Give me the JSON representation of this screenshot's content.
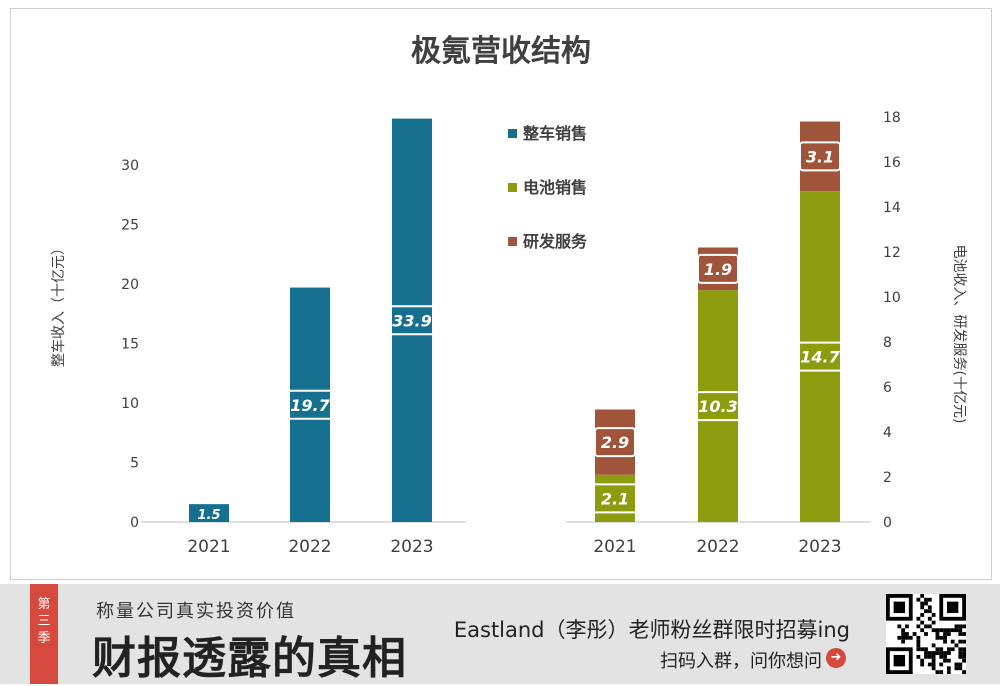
{
  "chart_data": {
    "title": "极氪营收结构",
    "left_panel": {
      "type": "bar",
      "categories": [
        "2021",
        "2022",
        "2023"
      ],
      "series": [
        {
          "name": "整车销售",
          "values": [
            1.5,
            19.7,
            33.9
          ]
        }
      ],
      "ylabel": "整车收入（十亿元）",
      "ylim": [
        0,
        35
      ],
      "yticks": [
        "0",
        "5",
        "10",
        "15",
        "20",
        "25",
        "30"
      ]
    },
    "right_panel": {
      "type": "stacked-bar",
      "categories": [
        "2021",
        "2022",
        "2023"
      ],
      "series": [
        {
          "name": "电池销售",
          "values": [
            2.1,
            10.3,
            14.7
          ]
        },
        {
          "name": "研发服务",
          "values": [
            2.9,
            1.9,
            3.1
          ]
        }
      ],
      "ylabel": "电池收入、研发服务(十亿元)",
      "ylim": [
        0,
        18
      ],
      "yticks": [
        "0",
        "2",
        "4",
        "6",
        "8",
        "10",
        "12",
        "14",
        "16",
        "18"
      ]
    },
    "legend": [
      "整车销售",
      "电池销售",
      "研发服务"
    ],
    "legend_placement": "center-top",
    "grid": false,
    "colors": {
      "vehicle": "#15708f",
      "battery": "#8c9c0e",
      "rd": "#a0543a"
    }
  },
  "banner": {
    "tag": "第三季",
    "subtitle": "称量公司真实投资价值",
    "title": "财报透露的真相",
    "line1": "Eastland（李彤）老师粉丝群限时招募ing",
    "line2": "扫码入群，问你想问",
    "arrow_icon": "arrow-right-circle-icon",
    "qr_icon": "qr-code-icon"
  }
}
